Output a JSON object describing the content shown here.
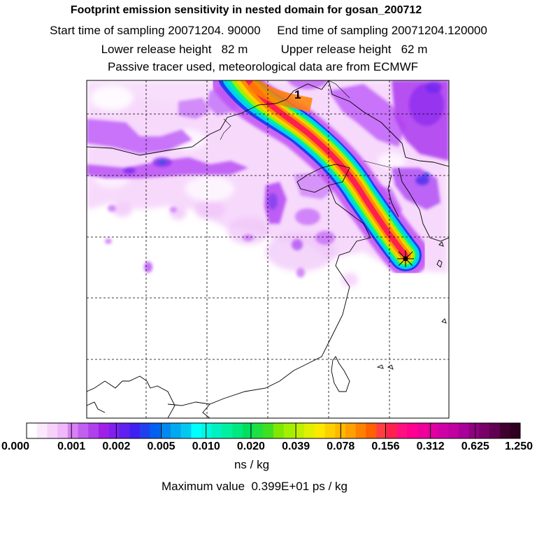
{
  "header": {
    "title": "Footprint emission sensitivity in nested domain for gosan_200712",
    "sampling_line": "Start time of sampling 20071204. 90000     End time of sampling 20071204.120000",
    "release_line": "Lower release height   82 m          Upper release height   62 m",
    "tracer_line": "Passive tracer used, meteorological data are from ECMWF"
  },
  "map": {
    "plume_label": "1",
    "receptor_marker": "receptor-star",
    "grid": "dashed lat-lon grid lines",
    "colors": {
      "low": "#f4ccfb",
      "mid": "#c060f8",
      "high": "#9020f0",
      "plume_outer": "#00d8f0",
      "plume_mid": "#f0f000",
      "plume_inner": "#ff8000",
      "plume_core": "#ff1040"
    }
  },
  "colorbar": {
    "labels": [
      "0.000",
      "0.001",
      "0.002",
      "0.005",
      "0.010",
      "0.020",
      "0.039",
      "0.078",
      "0.156",
      "0.312",
      "0.625",
      "1.250"
    ],
    "colors": [
      "#ffffff",
      "#fbe8fd",
      "#f6d2fb",
      "#f0b8f8",
      "#d880f4",
      "#c060f0",
      "#b040ec",
      "#a020e8",
      "#8020f0",
      "#6020f0",
      "#4020f0",
      "#2040f0",
      "#0060f0",
      "#0088f0",
      "#00a8f0",
      "#00c8f0",
      "#00ffff",
      "#00f8e0",
      "#00f0c0",
      "#00f0a0",
      "#00e880",
      "#00e060",
      "#20e040",
      "#40e020",
      "#80e800",
      "#a0f000",
      "#c0f000",
      "#e0f000",
      "#ffe800",
      "#ffd000",
      "#ffb800",
      "#ffa000",
      "#ff8000",
      "#ff6000",
      "#ff4040",
      "#ff2050",
      "#ff1080",
      "#ff0090",
      "#f00098",
      "#e000a0",
      "#d000a8",
      "#c000a0",
      "#a80098",
      "#900080",
      "#780068",
      "#600050",
      "#400030",
      "#300020"
    ]
  },
  "units": "ns / kg",
  "maximum": "Maximum value  0.399E+01 ps / kg"
}
